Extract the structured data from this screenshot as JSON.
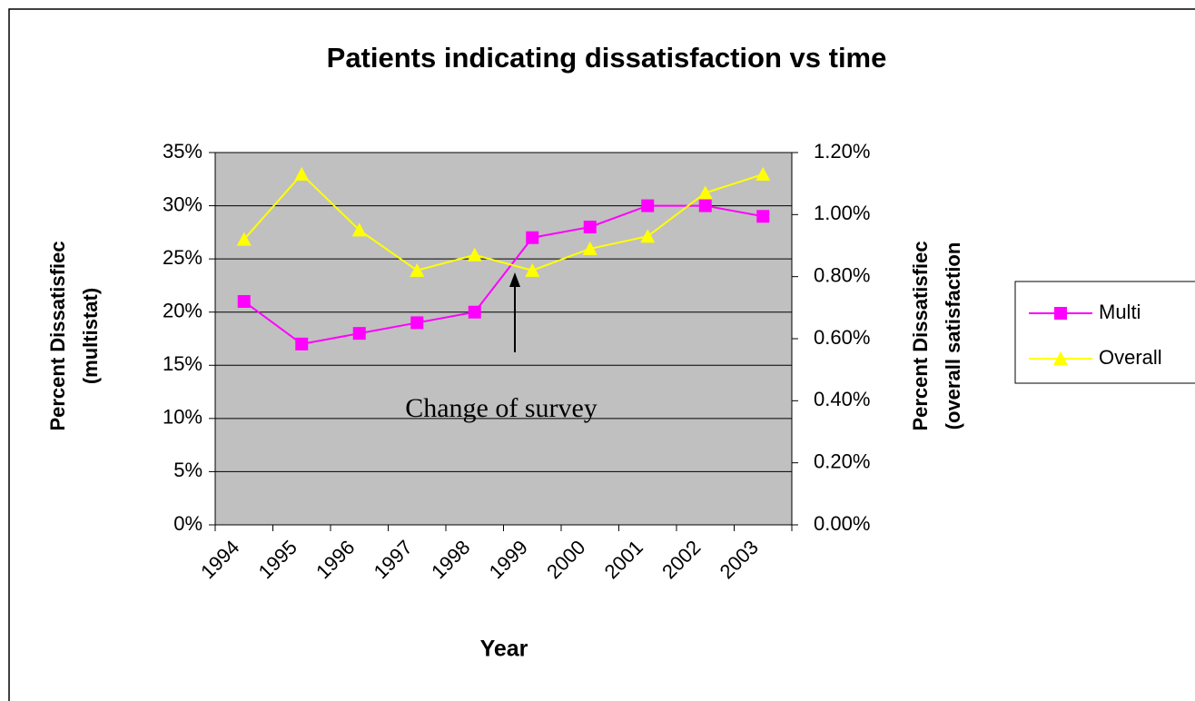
{
  "chart_data": {
    "type": "line",
    "title": "Patients indicating dissatisfaction vs time",
    "xlabel": "Year",
    "ylabel": [
      "Percent Dissatisfiec",
      "(multistat)"
    ],
    "y2label": [
      "Percent Dissatisfiec",
      "(overall satisfaction"
    ],
    "categories": [
      "1994",
      "1995",
      "1996",
      "1997",
      "1998",
      "1999",
      "2000",
      "2001",
      "2002",
      "2003"
    ],
    "series": [
      {
        "name": "Multi",
        "color": "#ff00ff",
        "marker": "square",
        "values": [
          21,
          17,
          18,
          19,
          20,
          27,
          28,
          30,
          30,
          29
        ]
      },
      {
        "name": "Overall",
        "color": "#ffff00",
        "marker": "triangle",
        "axis": "y2",
        "values": [
          0.92,
          1.13,
          0.95,
          0.82,
          0.87,
          0.82,
          0.89,
          0.93,
          1.07,
          1.13
        ]
      }
    ],
    "ylim": [
      0,
      35
    ],
    "yticks": [
      {
        "value": 0,
        "label": "0%"
      },
      {
        "value": 5,
        "label": "5%"
      },
      {
        "value": 10,
        "label": "10%"
      },
      {
        "value": 15,
        "label": "15%"
      },
      {
        "value": 20,
        "label": "20%"
      },
      {
        "value": 25,
        "label": "25%"
      },
      {
        "value": 30,
        "label": "30%"
      },
      {
        "value": 35,
        "label": "35%"
      }
    ],
    "y2lim": [
      0,
      1.2
    ],
    "y2ticks": [
      {
        "value": 0,
        "label": "0.00%"
      },
      {
        "value": 0.2,
        "label": "0.20%"
      },
      {
        "value": 0.4,
        "label": "0.40%"
      },
      {
        "value": 0.6,
        "label": "0.60%"
      },
      {
        "value": 0.8,
        "label": "0.80%"
      },
      {
        "value": 1.0,
        "label": "1.00%"
      },
      {
        "value": 1.2,
        "label": "1.20%"
      }
    ],
    "grid": true,
    "legend": "right",
    "annotations": [
      {
        "text": "Change of survey"
      }
    ]
  }
}
